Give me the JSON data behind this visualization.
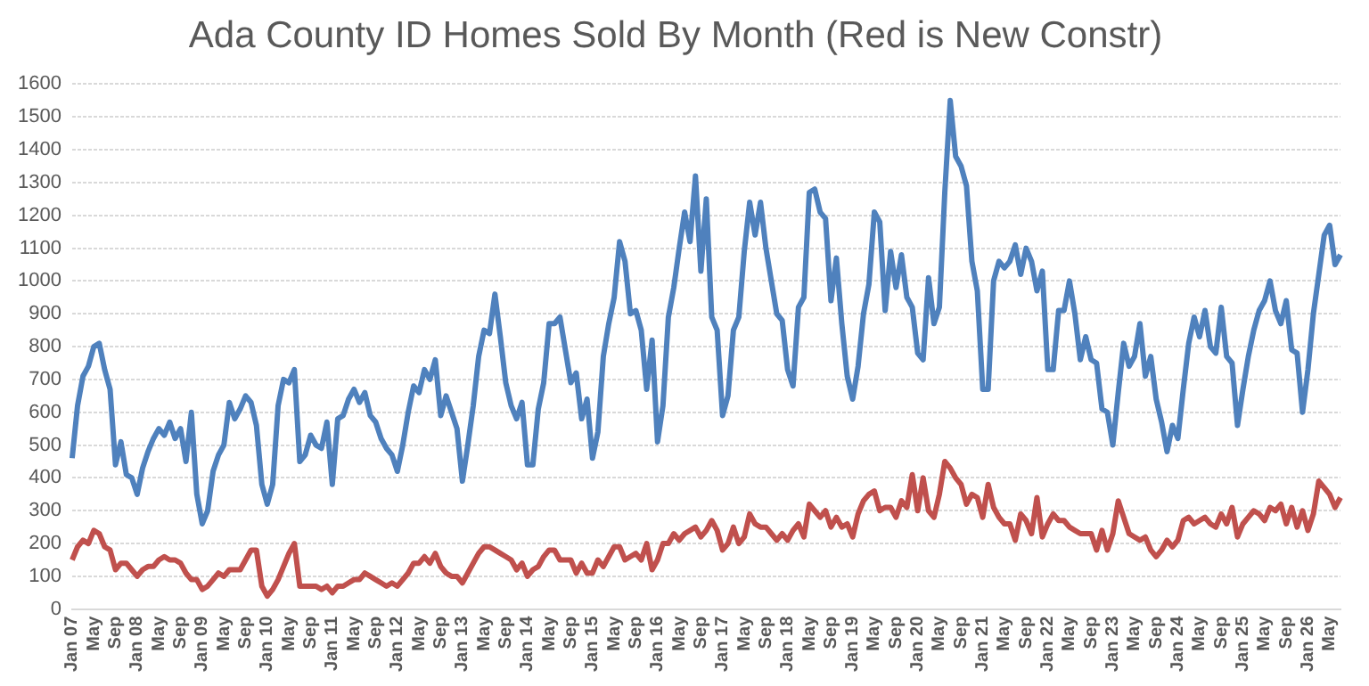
{
  "chart_data": {
    "type": "line",
    "title": "Ada County ID Homes Sold By Month (Red is New Constr)",
    "categories": [
      "Jan 07",
      null,
      null,
      null,
      "May",
      null,
      null,
      null,
      "Sep",
      null,
      null,
      null,
      "Jan 08",
      null,
      null,
      null,
      "May",
      null,
      null,
      null,
      "Sep",
      null,
      null,
      null,
      "Jan 09",
      null,
      null,
      null,
      "May",
      null,
      null,
      null,
      "Sep",
      null,
      null,
      null,
      "Jan 10",
      null,
      null,
      null,
      "May",
      null,
      null,
      null,
      "Sep",
      null,
      null,
      null,
      "Jan 11",
      null,
      null,
      null,
      "May",
      null,
      null,
      null,
      "Sep",
      null,
      null,
      null,
      "Jan 12",
      null,
      null,
      null,
      "May",
      null,
      null,
      null,
      "Sep",
      null,
      null,
      null,
      "Jan 13",
      null,
      null,
      null,
      "May",
      null,
      null,
      null,
      "Sep",
      null,
      null,
      null,
      "Jan 14",
      null,
      null,
      null,
      "May",
      null,
      null,
      null,
      "Sep",
      null,
      null,
      null,
      "Jan 15",
      null,
      null,
      null,
      "May",
      null,
      null,
      null,
      "Sep",
      null,
      null,
      null,
      "Jan 16",
      null,
      null,
      null,
      "May",
      null,
      null,
      null,
      "Sep",
      null,
      null,
      null,
      "Jan 17",
      null,
      null,
      null,
      "May",
      null,
      null,
      null,
      "Sep",
      null,
      null,
      null,
      "Jan 18",
      null,
      null,
      null,
      "May",
      null,
      null,
      null,
      "Sep",
      null,
      null,
      null,
      "Jan 19",
      null,
      null,
      null,
      "May",
      null,
      null,
      null,
      "Sep",
      null,
      null,
      null,
      "Jan 20",
      null,
      null,
      null,
      "May",
      null,
      null,
      null,
      "Sep",
      null,
      null,
      null,
      "Jan 21",
      null,
      null,
      null,
      "May",
      null,
      null,
      null,
      "Sep",
      null,
      null,
      null,
      "Jan 22",
      null,
      null,
      null,
      "May",
      null,
      null,
      null,
      "Sep",
      null,
      null,
      null,
      "Jan 23",
      null,
      null,
      null,
      "May",
      null,
      null,
      null,
      "Sep",
      null,
      null,
      null,
      "Jan 24",
      null,
      null,
      null,
      "May",
      null,
      null,
      null,
      "Sep",
      null,
      null,
      null,
      "Jan 25",
      null,
      null,
      null,
      "May",
      null,
      null,
      null,
      "Sep",
      null,
      null,
      null,
      "Jan 26",
      null,
      null,
      null,
      "May",
      null,
      null
    ],
    "series": [
      {
        "color": "#4f81bd",
        "values": [
          460,
          620,
          710,
          740,
          800,
          810,
          730,
          670,
          440,
          510,
          410,
          400,
          350,
          430,
          480,
          520,
          550,
          530,
          570,
          520,
          550,
          450,
          600,
          350,
          260,
          300,
          420,
          470,
          500,
          630,
          580,
          610,
          650,
          630,
          560,
          380,
          320,
          380,
          620,
          700,
          690,
          730,
          450,
          470,
          530,
          500,
          490,
          570,
          380,
          580,
          590,
          640,
          670,
          630,
          660,
          590,
          570,
          520,
          490,
          470,
          420,
          500,
          600,
          680,
          660,
          730,
          700,
          760,
          590,
          650,
          600,
          550,
          390,
          500,
          620,
          770,
          850,
          840,
          960,
          830,
          690,
          620,
          580,
          630,
          440,
          440,
          610,
          690,
          870,
          870,
          890,
          790,
          690,
          720,
          580,
          640,
          460,
          540,
          770,
          870,
          950,
          1120,
          1060,
          900,
          910,
          850,
          670,
          820,
          510,
          620,
          890,
          980,
          1100,
          1210,
          1120,
          1320,
          1030,
          1250,
          890,
          850,
          590,
          650,
          850,
          890,
          1090,
          1240,
          1140,
          1240,
          1100,
          1000,
          900,
          880,
          730,
          680,
          920,
          950,
          1270,
          1280,
          1210,
          1190,
          940,
          1070,
          870,
          710,
          640,
          740,
          900,
          990,
          1210,
          1180,
          910,
          1090,
          980,
          1080,
          950,
          920,
          780,
          760,
          1010,
          870,
          920,
          1270,
          1550,
          1380,
          1350,
          1290,
          1060,
          970,
          670,
          670,
          1000,
          1060,
          1040,
          1060,
          1110,
          1020,
          1100,
          1060,
          970,
          1030,
          730,
          730,
          910,
          910,
          1000,
          900,
          760,
          830,
          760,
          750,
          610,
          600,
          500,
          660,
          810,
          740,
          770,
          870,
          710,
          770,
          640,
          570,
          480,
          560,
          520,
          670,
          810,
          890,
          830,
          910,
          800,
          780,
          920,
          770,
          750,
          560,
          670,
          770,
          850,
          910,
          940,
          1000,
          910,
          870,
          940,
          790,
          780,
          600,
          730,
          900,
          1020,
          1140,
          1170,
          1050,
          1080
        ]
      },
      {
        "color": "#c0504d",
        "values": [
          150,
          190,
          210,
          200,
          240,
          230,
          190,
          180,
          120,
          140,
          140,
          120,
          100,
          120,
          130,
          130,
          150,
          160,
          150,
          150,
          140,
          110,
          90,
          90,
          60,
          70,
          90,
          110,
          100,
          120,
          120,
          120,
          150,
          180,
          180,
          70,
          40,
          60,
          90,
          130,
          170,
          200,
          70,
          70,
          70,
          70,
          60,
          70,
          50,
          70,
          70,
          80,
          90,
          90,
          110,
          100,
          90,
          80,
          70,
          80,
          70,
          90,
          110,
          140,
          140,
          160,
          140,
          170,
          130,
          110,
          100,
          100,
          80,
          110,
          140,
          170,
          190,
          190,
          180,
          170,
          160,
          150,
          120,
          140,
          100,
          120,
          130,
          160,
          180,
          180,
          150,
          150,
          150,
          110,
          140,
          110,
          110,
          150,
          130,
          160,
          190,
          190,
          150,
          160,
          170,
          150,
          200,
          120,
          150,
          200,
          200,
          230,
          210,
          230,
          240,
          250,
          220,
          240,
          270,
          240,
          180,
          200,
          250,
          200,
          220,
          290,
          260,
          250,
          250,
          230,
          210,
          230,
          210,
          240,
          260,
          220,
          320,
          300,
          280,
          300,
          250,
          280,
          250,
          260,
          220,
          290,
          330,
          350,
          360,
          300,
          310,
          310,
          280,
          330,
          310,
          410,
          300,
          400,
          300,
          280,
          350,
          450,
          430,
          400,
          380,
          320,
          350,
          340,
          280,
          380,
          310,
          280,
          260,
          260,
          210,
          290,
          270,
          230,
          340,
          220,
          260,
          290,
          270,
          270,
          250,
          240,
          230,
          230,
          230,
          180,
          240,
          180,
          230,
          330,
          280,
          230,
          220,
          210,
          220,
          180,
          160,
          180,
          210,
          190,
          210,
          270,
          280,
          260,
          270,
          280,
          260,
          250,
          290,
          260,
          310,
          220,
          260,
          280,
          300,
          290,
          270,
          310,
          300,
          320,
          260,
          310,
          250,
          300,
          240,
          290,
          390,
          370,
          350,
          310,
          340
        ]
      }
    ],
    "ylim": [
      0,
      1600
    ],
    "yticks": [
      0,
      100,
      200,
      300,
      400,
      500,
      600,
      700,
      800,
      900,
      1000,
      1100,
      1200,
      1300,
      1400,
      1500,
      1600
    ],
    "grid": "y"
  }
}
